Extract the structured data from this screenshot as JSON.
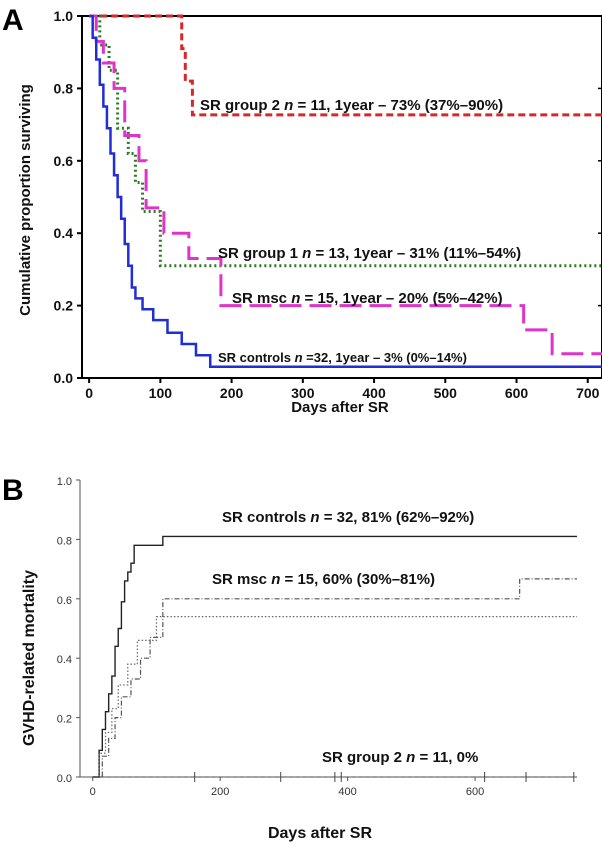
{
  "chart_data": [
    {
      "panel": "A",
      "type": "line",
      "step": true,
      "xlabel": "Days after SR",
      "ylabel": "Cumulative proportion surviving",
      "xlim": [
        -10,
        720
      ],
      "ylim": [
        0,
        1.0
      ],
      "xticks": [
        0,
        100,
        200,
        300,
        400,
        500,
        600,
        700
      ],
      "yticks": [
        0.0,
        0.2,
        0.4,
        0.6,
        0.8,
        1.0
      ],
      "ytick_labels": [
        "0.0",
        "0.2",
        "0.4",
        "0.6",
        "0.8",
        "1.0"
      ],
      "series": [
        {
          "color": "#d9262a",
          "dash": "7,4",
          "label": [
            "SR group 2 ",
            "n",
            " = 11, 1year – 73% (37%–90%)"
          ],
          "x": [
            0,
            130,
            135,
            145,
            720
          ],
          "y": [
            1.0,
            0.91,
            0.82,
            0.727,
            0.727
          ]
        },
        {
          "color": "#2a7a1f",
          "dash": "2,3",
          "label": [
            "SR group 1 ",
            "n",
            " = 13, 1year – 31% (11%–54%)"
          ],
          "x": [
            0,
            15,
            28,
            40,
            55,
            65,
            75,
            100,
            720
          ],
          "y": [
            1.0,
            0.92,
            0.85,
            0.69,
            0.62,
            0.54,
            0.46,
            0.31,
            0.31
          ]
        },
        {
          "color": "#e033c9",
          "dash": "22,8",
          "label": [
            "SR msc ",
            "n",
            " = 15, 1year – 20% (5%–42%)"
          ],
          "x": [
            0,
            10,
            20,
            35,
            50,
            70,
            80,
            105,
            140,
            185,
            610,
            650,
            720
          ],
          "y": [
            1.0,
            0.93,
            0.87,
            0.8,
            0.67,
            0.6,
            0.47,
            0.4,
            0.33,
            0.2,
            0.133,
            0.067,
            0.067
          ]
        },
        {
          "color": "#1f2ed6",
          "dash": "",
          "label": [
            "SR controls ",
            "n",
            " =32, 1year – 3% (0%–14%)"
          ],
          "x": [
            0,
            5,
            10,
            15,
            20,
            25,
            30,
            35,
            40,
            45,
            50,
            55,
            60,
            65,
            75,
            90,
            110,
            130,
            150,
            170,
            720
          ],
          "y": [
            1.0,
            0.94,
            0.88,
            0.81,
            0.75,
            0.69,
            0.62,
            0.56,
            0.5,
            0.44,
            0.37,
            0.31,
            0.25,
            0.22,
            0.19,
            0.16,
            0.125,
            0.094,
            0.063,
            0.031,
            0.031
          ]
        }
      ]
    },
    {
      "panel": "B",
      "type": "line",
      "step": true,
      "xlabel": "Days after SR",
      "ylabel": "GVHD-related mortality",
      "xlim": [
        -20,
        760
      ],
      "ylim": [
        0,
        1.0
      ],
      "xticks": [
        0,
        200,
        400,
        600
      ],
      "yticks": [
        0.0,
        0.2,
        0.4,
        0.6,
        0.8,
        1.0
      ],
      "ytick_labels": [
        "0.0",
        "0.2",
        "0.4",
        "0.6",
        "0.8",
        "1.0"
      ],
      "series": [
        {
          "color": "#222222",
          "dash": "",
          "label": [
            "SR controls ",
            "n",
            " = 32, 81% (62%–92%)"
          ],
          "x": [
            0,
            10,
            15,
            20,
            25,
            30,
            35,
            40,
            45,
            50,
            55,
            60,
            65,
            75,
            110,
            760
          ],
          "y": [
            0,
            0.09,
            0.16,
            0.22,
            0.28,
            0.34,
            0.44,
            0.5,
            0.59,
            0.66,
            0.69,
            0.72,
            0.78,
            0.78,
            0.81,
            0.81
          ]
        },
        {
          "color": "#555555",
          "dash": "5,2,1,2",
          "label": [
            "SR msc ",
            "n",
            " = 15, 60% (30%–81%)"
          ],
          "x": [
            0,
            15,
            25,
            35,
            45,
            60,
            75,
            90,
            110,
            650,
            670,
            760
          ],
          "y": [
            0,
            0.07,
            0.13,
            0.2,
            0.27,
            0.33,
            0.4,
            0.47,
            0.6,
            0.6,
            0.667,
            0.667
          ]
        },
        {
          "color": "#666666",
          "dash": "1.5,2",
          "series_ref": "SR group 1",
          "x": [
            0,
            10,
            20,
            30,
            40,
            55,
            70,
            80,
            100,
            760
          ],
          "y": [
            0,
            0.08,
            0.15,
            0.23,
            0.31,
            0.38,
            0.46,
            0.46,
            0.54,
            0.54
          ]
        },
        {
          "color": "#444444",
          "dash": "4,3",
          "label": [
            "SR group 2 ",
            "n",
            " = 11, 0%"
          ],
          "x": [
            0,
            760
          ],
          "y": [
            0,
            0
          ],
          "censor_x": [
            160,
            295,
            380,
            390,
            615,
            680,
            755
          ]
        }
      ]
    }
  ]
}
